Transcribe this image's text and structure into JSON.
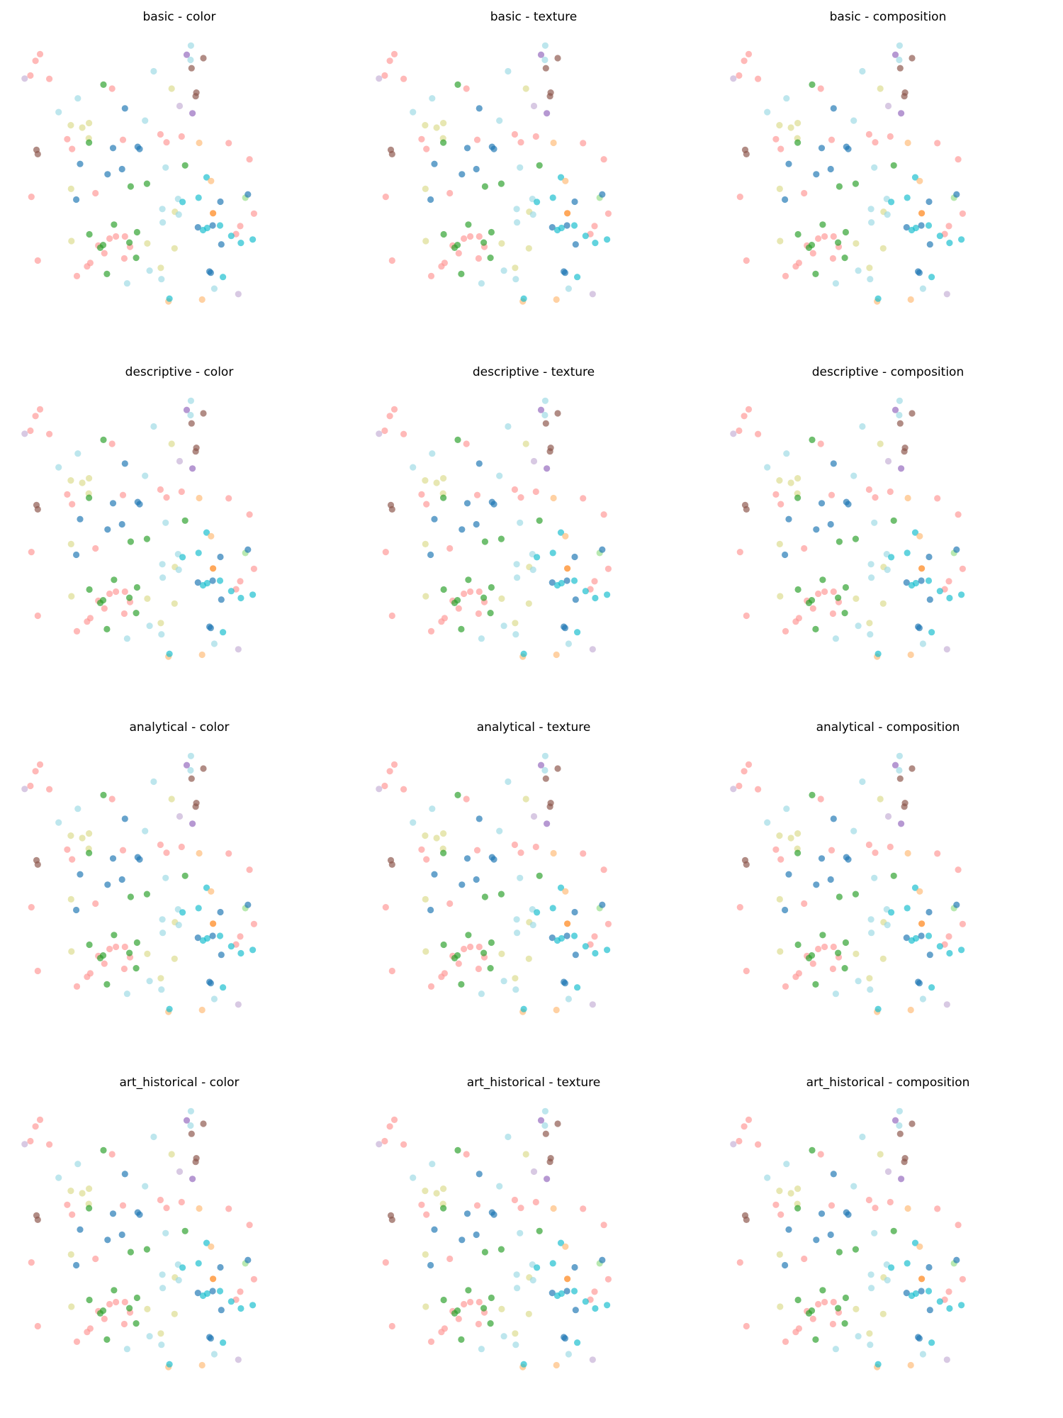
{
  "chart_data": {
    "type": "scatter",
    "layout": {
      "rows": 4,
      "cols": 3
    },
    "axes_visible": false,
    "grid": false,
    "legend": false,
    "xlim": [
      0,
      100
    ],
    "ylim": [
      0,
      100
    ],
    "palette": {
      "blue": "#1f77b4",
      "orange": "#ff7f0e",
      "green": "#2ca02c",
      "salmon": "#ff9896",
      "purple": "#9467bd",
      "brown": "#8c564b",
      "lavender": "#c5b0d5",
      "olive_light": "#dbdb8d",
      "cyan": "#17becf",
      "cyan_light": "#9edae5",
      "orange_light": "#ffbb78",
      "green_light": "#98df8a"
    },
    "points": [
      {
        "x": 6.3,
        "y": 93.4,
        "c": "salmon"
      },
      {
        "x": 4.9,
        "y": 91.2,
        "c": "salmon"
      },
      {
        "x": 3.3,
        "y": 86.4,
        "c": "salmon"
      },
      {
        "x": 1.5,
        "y": 85.4,
        "c": "lavender"
      },
      {
        "x": 9.2,
        "y": 85.3,
        "c": "salmon"
      },
      {
        "x": 3.6,
        "y": 46.6,
        "c": "salmon"
      },
      {
        "x": 5.2,
        "y": 62.0,
        "c": "brown"
      },
      {
        "x": 5.6,
        "y": 60.6,
        "c": "brown"
      },
      {
        "x": 12.1,
        "y": 74.4,
        "c": "cyan_light"
      },
      {
        "x": 15.9,
        "y": 70.1,
        "c": "olive_light"
      },
      {
        "x": 18.1,
        "y": 78.9,
        "c": "cyan_light"
      },
      {
        "x": 19.5,
        "y": 69.3,
        "c": "olive_light"
      },
      {
        "x": 21.6,
        "y": 70.8,
        "c": "olive_light"
      },
      {
        "x": 14.8,
        "y": 65.5,
        "c": "salmon"
      },
      {
        "x": 16.3,
        "y": 62.3,
        "c": "salmon"
      },
      {
        "x": 21.5,
        "y": 65.8,
        "c": "olive_light"
      },
      {
        "x": 21.6,
        "y": 64.4,
        "c": "green"
      },
      {
        "x": 18.8,
        "y": 57.4,
        "c": "blue"
      },
      {
        "x": 16.0,
        "y": 49.2,
        "c": "olive_light"
      },
      {
        "x": 17.6,
        "y": 45.7,
        "c": "blue"
      },
      {
        "x": 23.6,
        "y": 47.8,
        "c": "salmon"
      },
      {
        "x": 26.1,
        "y": 83.4,
        "c": "green"
      },
      {
        "x": 28.8,
        "y": 82.1,
        "c": "salmon"
      },
      {
        "x": 32.8,
        "y": 75.6,
        "c": "blue"
      },
      {
        "x": 39.1,
        "y": 71.6,
        "c": "cyan_light"
      },
      {
        "x": 29.1,
        "y": 62.6,
        "c": "blue"
      },
      {
        "x": 32.2,
        "y": 65.3,
        "c": "salmon"
      },
      {
        "x": 36.8,
        "y": 63.0,
        "c": "blue"
      },
      {
        "x": 37.4,
        "y": 62.3,
        "c": "blue"
      },
      {
        "x": 27.4,
        "y": 54.0,
        "c": "blue"
      },
      {
        "x": 31.9,
        "y": 55.7,
        "c": "blue"
      },
      {
        "x": 34.6,
        "y": 50.0,
        "c": "green"
      },
      {
        "x": 39.7,
        "y": 50.9,
        "c": "green"
      },
      {
        "x": 41.8,
        "y": 87.8,
        "c": "cyan_light"
      },
      {
        "x": 47.4,
        "y": 82.1,
        "c": "olive_light"
      },
      {
        "x": 43.9,
        "y": 67.1,
        "c": "salmon"
      },
      {
        "x": 45.8,
        "y": 64.5,
        "c": "salmon"
      },
      {
        "x": 50.5,
        "y": 66.4,
        "c": "salmon"
      },
      {
        "x": 45.5,
        "y": 56.2,
        "c": "cyan_light"
      },
      {
        "x": 44.5,
        "y": 42.6,
        "c": "cyan_light"
      },
      {
        "x": 48.4,
        "y": 41.7,
        "c": "olive_light"
      },
      {
        "x": 49.6,
        "y": 40.8,
        "c": "cyan_light"
      },
      {
        "x": 49.4,
        "y": 45.9,
        "c": "cyan_light"
      },
      {
        "x": 50.8,
        "y": 44.9,
        "c": "cyan"
      },
      {
        "x": 51.6,
        "y": 56.9,
        "c": "green"
      },
      {
        "x": 52.1,
        "y": 93.2,
        "c": "purple"
      },
      {
        "x": 53.4,
        "y": 96.2,
        "c": "cyan_light"
      },
      {
        "x": 53.3,
        "y": 91.5,
        "c": "cyan_light"
      },
      {
        "x": 57.3,
        "y": 92.1,
        "c": "brown"
      },
      {
        "x": 53.6,
        "y": 88.8,
        "c": "brown"
      },
      {
        "x": 55.1,
        "y": 80.8,
        "c": "brown"
      },
      {
        "x": 54.9,
        "y": 79.6,
        "c": "brown"
      },
      {
        "x": 49.9,
        "y": 76.4,
        "c": "lavender"
      },
      {
        "x": 53.9,
        "y": 74.0,
        "c": "purple"
      },
      {
        "x": 56.0,
        "y": 64.3,
        "c": "orange_light"
      },
      {
        "x": 58.3,
        "y": 53.0,
        "c": "cyan"
      },
      {
        "x": 59.7,
        "y": 51.8,
        "c": "orange_light"
      },
      {
        "x": 55.8,
        "y": 46.3,
        "c": "cyan"
      },
      {
        "x": 62.6,
        "y": 45.0,
        "c": "blue"
      },
      {
        "x": 65.2,
        "y": 64.2,
        "c": "salmon"
      },
      {
        "x": 71.7,
        "y": 58.9,
        "c": "salmon"
      },
      {
        "x": 70.4,
        "y": 46.3,
        "c": "green_light"
      },
      {
        "x": 71.2,
        "y": 47.4,
        "c": "blue"
      },
      {
        "x": 60.3,
        "y": 41.2,
        "c": "orange"
      },
      {
        "x": 73.1,
        "y": 41.1,
        "c": "salmon"
      },
      {
        "x": 5.6,
        "y": 25.7,
        "c": "salmon"
      },
      {
        "x": 16.1,
        "y": 32.1,
        "c": "olive_light"
      },
      {
        "x": 17.8,
        "y": 20.6,
        "c": "salmon"
      },
      {
        "x": 21.0,
        "y": 23.8,
        "c": "salmon"
      },
      {
        "x": 22.0,
        "y": 24.9,
        "c": "salmon"
      },
      {
        "x": 21.7,
        "y": 34.3,
        "c": "green"
      },
      {
        "x": 24.5,
        "y": 30.6,
        "c": "salmon"
      },
      {
        "x": 26.0,
        "y": 30.8,
        "c": "green"
      },
      {
        "x": 25.1,
        "y": 29.9,
        "c": "green"
      },
      {
        "x": 26.4,
        "y": 28.1,
        "c": "salmon"
      },
      {
        "x": 28.0,
        "y": 32.9,
        "c": "salmon"
      },
      {
        "x": 30.0,
        "y": 33.6,
        "c": "salmon"
      },
      {
        "x": 29.4,
        "y": 37.5,
        "c": "green"
      },
      {
        "x": 32.8,
        "y": 33.6,
        "c": "salmon"
      },
      {
        "x": 34.4,
        "y": 30.2,
        "c": "salmon"
      },
      {
        "x": 34.2,
        "y": 31.6,
        "c": "green"
      },
      {
        "x": 36.6,
        "y": 35.0,
        "c": "green"
      },
      {
        "x": 32.6,
        "y": 26.4,
        "c": "salmon"
      },
      {
        "x": 36.3,
        "y": 26.6,
        "c": "green"
      },
      {
        "x": 39.8,
        "y": 31.3,
        "c": "olive_light"
      },
      {
        "x": 27.2,
        "y": 21.3,
        "c": "green"
      },
      {
        "x": 44.6,
        "y": 38.2,
        "c": "cyan_light"
      },
      {
        "x": 44.2,
        "y": 19.6,
        "c": "cyan_light"
      },
      {
        "x": 44.0,
        "y": 23.3,
        "c": "olive_light"
      },
      {
        "x": 48.3,
        "y": 29.7,
        "c": "olive_light"
      },
      {
        "x": 40.5,
        "y": 22.4,
        "c": "cyan_light"
      },
      {
        "x": 33.5,
        "y": 18.2,
        "c": "cyan_light"
      },
      {
        "x": 46.4,
        "y": 12.3,
        "c": "orange_light"
      },
      {
        "x": 46.7,
        "y": 13.2,
        "c": "cyan"
      },
      {
        "x": 55.6,
        "y": 36.6,
        "c": "blue"
      },
      {
        "x": 58.5,
        "y": 36.4,
        "c": "cyan"
      },
      {
        "x": 57.2,
        "y": 35.7,
        "c": "cyan"
      },
      {
        "x": 60.2,
        "y": 37.2,
        "c": "blue"
      },
      {
        "x": 62.5,
        "y": 37.2,
        "c": "cyan"
      },
      {
        "x": 62.9,
        "y": 31.0,
        "c": "blue"
      },
      {
        "x": 67.5,
        "y": 34.4,
        "c": "salmon"
      },
      {
        "x": 66.0,
        "y": 33.8,
        "c": "cyan"
      },
      {
        "x": 68.8,
        "y": 37.0,
        "c": "salmon"
      },
      {
        "x": 69.0,
        "y": 31.5,
        "c": "cyan"
      },
      {
        "x": 72.7,
        "y": 32.6,
        "c": "cyan"
      },
      {
        "x": 59.6,
        "y": 21.7,
        "c": "blue"
      },
      {
        "x": 59.2,
        "y": 22.1,
        "c": "blue"
      },
      {
        "x": 63.4,
        "y": 20.3,
        "c": "cyan"
      },
      {
        "x": 60.7,
        "y": 16.5,
        "c": "cyan_light"
      },
      {
        "x": 56.9,
        "y": 12.9,
        "c": "orange_light"
      },
      {
        "x": 68.2,
        "y": 14.7,
        "c": "lavender"
      }
    ],
    "panels": [
      {
        "title": "basic - color"
      },
      {
        "title": "basic - texture"
      },
      {
        "title": "basic - composition"
      },
      {
        "title": "descriptive - color"
      },
      {
        "title": "descriptive - texture"
      },
      {
        "title": "descriptive - composition"
      },
      {
        "title": "analytical - color"
      },
      {
        "title": "analytical - texture"
      },
      {
        "title": "analytical - composition"
      },
      {
        "title": "art_historical - color"
      },
      {
        "title": "art_historical - texture"
      },
      {
        "title": "art_historical - composition"
      }
    ]
  }
}
